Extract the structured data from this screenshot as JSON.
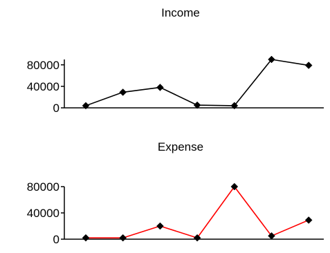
{
  "chart_data": [
    {
      "type": "line",
      "title": "Income",
      "xlabel": "",
      "ylabel": "",
      "x": [
        1,
        2,
        3,
        4,
        5,
        6,
        7
      ],
      "values": [
        4000,
        29000,
        38000,
        5000,
        4000,
        90000,
        79000
      ],
      "ylim": [
        0,
        90000
      ],
      "yticks": [
        0,
        40000,
        80000
      ],
      "ytick_labels": [
        "0",
        "40000",
        "80000"
      ],
      "color": "#000000",
      "marker": "diamond",
      "marker_color": "#000000",
      "grid": false
    },
    {
      "type": "line",
      "title": "Expense",
      "xlabel": "",
      "ylabel": "",
      "x": [
        1,
        2,
        3,
        4,
        5,
        6,
        7
      ],
      "values": [
        2000,
        2000,
        20000,
        2000,
        80000,
        5000,
        29000
      ],
      "ylim": [
        0,
        80000
      ],
      "yticks": [
        0,
        40000,
        80000
      ],
      "ytick_labels": [
        "0",
        "40000",
        "80000"
      ],
      "color": "#ff0000",
      "marker": "diamond",
      "marker_color": "#000000",
      "grid": false
    }
  ]
}
